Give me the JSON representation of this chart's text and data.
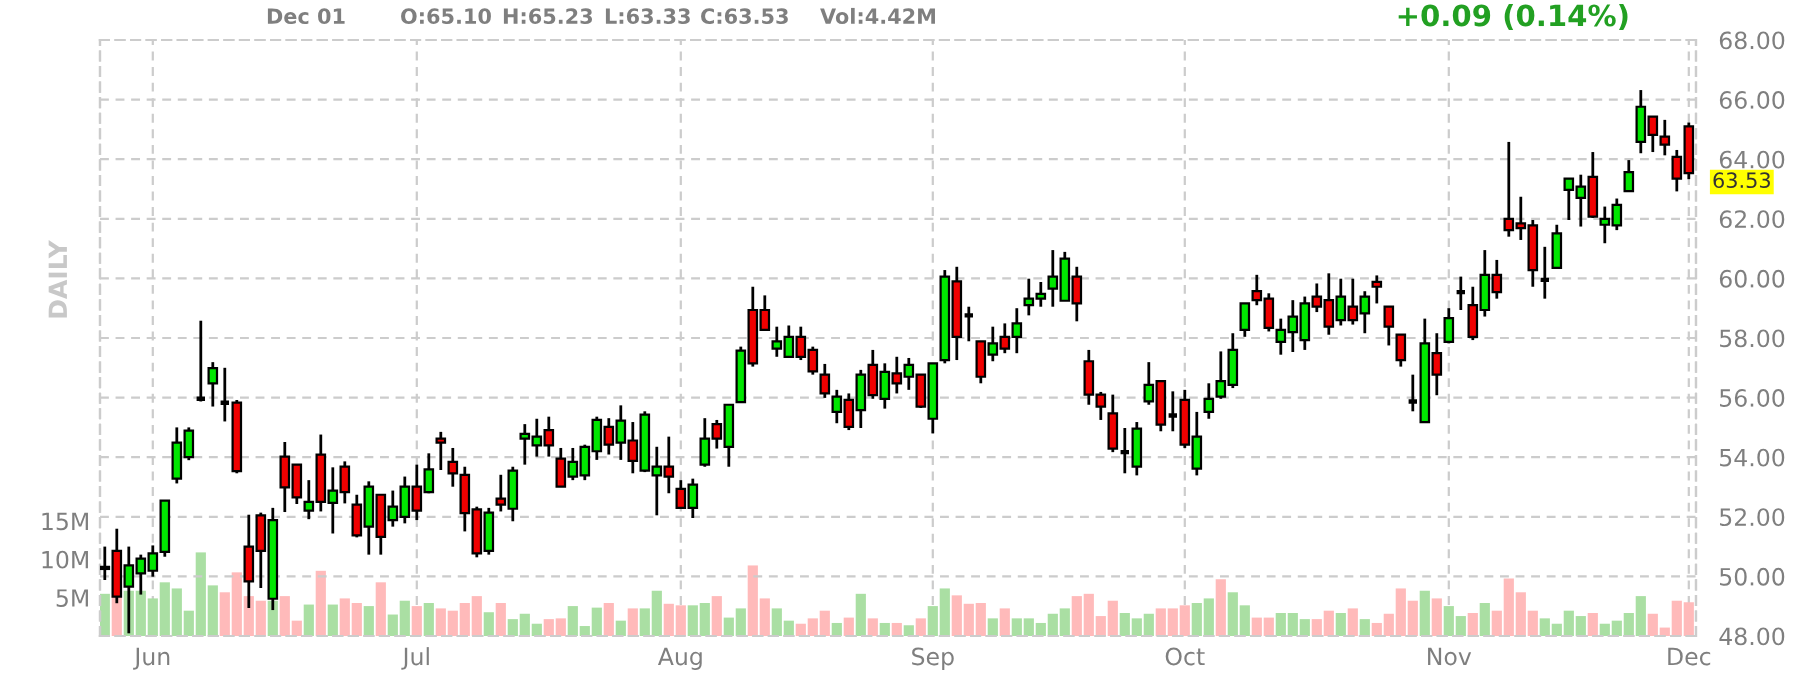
{
  "chart_data": {
    "type": "candlestick",
    "categories": [
      null,
      null,
      null,
      null,
      "Jun",
      null,
      null,
      null,
      null,
      null,
      null,
      null,
      null,
      null,
      null,
      null,
      null,
      null,
      null,
      null,
      null,
      null,
      null,
      null,
      null,
      null,
      "Jul",
      null,
      null,
      null,
      null,
      null,
      null,
      null,
      null,
      null,
      null,
      null,
      null,
      null,
      null,
      null,
      null,
      null,
      null,
      null,
      null,
      null,
      "Aug",
      null,
      null,
      null,
      null,
      null,
      null,
      null,
      null,
      null,
      null,
      null,
      null,
      null,
      null,
      null,
      null,
      null,
      null,
      null,
      null,
      "Sep",
      null,
      null,
      null,
      null,
      null,
      null,
      null,
      null,
      null,
      null,
      null,
      null,
      null,
      null,
      null,
      null,
      null,
      null,
      null,
      null,
      "Oct",
      null,
      null,
      null,
      null,
      null,
      null,
      null,
      null,
      null,
      null,
      null,
      null,
      null,
      null,
      null,
      null,
      null,
      null,
      null,
      null,
      null,
      "Nov",
      null,
      null,
      null,
      null,
      null,
      null,
      null,
      null,
      null,
      null,
      null,
      null,
      null,
      null,
      null,
      null,
      null,
      null,
      null,
      "Dec"
    ],
    "ohlc": [
      [
        50.32,
        51.0,
        49.88,
        50.25
      ],
      [
        50.86,
        51.6,
        49.1,
        49.32
      ],
      [
        49.66,
        51.0,
        48.09,
        50.37
      ],
      [
        50.1,
        50.73,
        49.39,
        50.6
      ],
      [
        50.19,
        51.04,
        49.99,
        50.77
      ],
      [
        50.82,
        52.54,
        50.66,
        52.54
      ],
      [
        53.28,
        55.0,
        53.12,
        54.49
      ],
      [
        54.0,
        55.0,
        53.9,
        54.89
      ],
      [
        55.96,
        58.58,
        55.87,
        55.96
      ],
      [
        56.48,
        57.19,
        55.7,
        56.99
      ],
      [
        55.83,
        57.0,
        55.2,
        55.83
      ],
      [
        55.83,
        55.92,
        53.46,
        53.53
      ],
      [
        51.0,
        52.07,
        48.94,
        49.83
      ],
      [
        52.05,
        52.14,
        49.61,
        50.86
      ],
      [
        49.25,
        52.3,
        48.87,
        51.89
      ],
      [
        54.02,
        54.51,
        52.16,
        52.99
      ],
      [
        53.75,
        53.75,
        52.43,
        52.65
      ],
      [
        52.21,
        53.23,
        51.92,
        52.5
      ],
      [
        54.09,
        54.76,
        52.18,
        52.5
      ],
      [
        52.47,
        53.66,
        51.44,
        52.88
      ],
      [
        53.68,
        53.86,
        52.45,
        52.83
      ],
      [
        52.41,
        52.74,
        51.31,
        51.38
      ],
      [
        51.67,
        53.19,
        50.73,
        53.01
      ],
      [
        52.74,
        52.74,
        50.73,
        51.33
      ],
      [
        51.89,
        52.88,
        51.67,
        52.34
      ],
      [
        52.0,
        53.35,
        51.78,
        53.01
      ],
      [
        53.01,
        53.75,
        51.89,
        52.21
      ],
      [
        52.83,
        54.13,
        52.79,
        53.59
      ],
      [
        54.62,
        54.85,
        53.57,
        54.49
      ],
      [
        53.84,
        54.31,
        53.01,
        53.46
      ],
      [
        53.41,
        53.68,
        51.51,
        52.12
      ],
      [
        52.25,
        52.34,
        50.64,
        50.77
      ],
      [
        50.86,
        52.3,
        50.73,
        52.14
      ],
      [
        52.61,
        53.41,
        52.18,
        52.41
      ],
      [
        52.27,
        53.68,
        51.85,
        53.55
      ],
      [
        54.62,
        55.11,
        53.75,
        54.78
      ],
      [
        54.4,
        55.29,
        54.02,
        54.69
      ],
      [
        54.91,
        55.36,
        54.02,
        54.4
      ],
      [
        53.95,
        54.31,
        53.01,
        53.01
      ],
      [
        53.35,
        54.31,
        53.23,
        53.84
      ],
      [
        53.39,
        54.42,
        53.23,
        54.35
      ],
      [
        54.2,
        55.36,
        53.91,
        55.25
      ],
      [
        55.02,
        55.31,
        54.09,
        54.42
      ],
      [
        54.49,
        55.74,
        53.91,
        55.23
      ],
      [
        54.56,
        55.18,
        53.46,
        53.88
      ],
      [
        53.55,
        55.54,
        53.5,
        55.43
      ],
      [
        53.39,
        54.35,
        52.05,
        53.68
      ],
      [
        53.68,
        54.69,
        52.79,
        53.35
      ],
      [
        52.94,
        53.23,
        52.3,
        52.3
      ],
      [
        52.3,
        53.28,
        51.96,
        53.08
      ],
      [
        53.75,
        55.31,
        53.68,
        54.62
      ],
      [
        55.11,
        55.25,
        54.29,
        54.62
      ],
      [
        54.35,
        55.76,
        53.68,
        55.76
      ],
      [
        55.85,
        57.71,
        55.85,
        57.58
      ],
      [
        58.94,
        59.72,
        57.04,
        57.15
      ],
      [
        58.94,
        59.43,
        58.27,
        58.27
      ],
      [
        57.64,
        58.38,
        57.37,
        57.89
      ],
      [
        57.37,
        58.42,
        57.33,
        58.04
      ],
      [
        58.04,
        58.38,
        57.26,
        57.37
      ],
      [
        57.6,
        57.71,
        56.77,
        56.88
      ],
      [
        56.77,
        57.13,
        55.99,
        56.14
      ],
      [
        55.52,
        56.26,
        55.14,
        56.03
      ],
      [
        55.92,
        56.14,
        54.91,
        55.02
      ],
      [
        55.58,
        56.93,
        54.98,
        56.77
      ],
      [
        57.1,
        57.6,
        55.96,
        56.08
      ],
      [
        55.96,
        57.15,
        55.63,
        56.86
      ],
      [
        56.81,
        57.37,
        56.14,
        56.48
      ],
      [
        56.7,
        57.33,
        56.26,
        57.1
      ],
      [
        56.77,
        56.77,
        55.65,
        55.7
      ],
      [
        55.29,
        57.15,
        54.8,
        57.15
      ],
      [
        57.26,
        60.28,
        57.15,
        60.06
      ],
      [
        59.9,
        60.39,
        57.26,
        58.04
      ],
      [
        58.76,
        59.05,
        57.89,
        58.76
      ],
      [
        57.89,
        57.89,
        56.48,
        56.7
      ],
      [
        57.44,
        58.38,
        57.22,
        57.82
      ],
      [
        58.04,
        58.49,
        57.49,
        57.64
      ],
      [
        58.04,
        59.0,
        57.49,
        58.49
      ],
      [
        59.1,
        59.99,
        58.76,
        59.32
      ],
      [
        59.32,
        59.88,
        59.05,
        59.48
      ],
      [
        59.66,
        60.95,
        59.05,
        60.06
      ],
      [
        59.25,
        60.89,
        59.25,
        60.66
      ],
      [
        60.06,
        60.39,
        58.56,
        59.16
      ],
      [
        57.22,
        57.6,
        55.76,
        56.1
      ],
      [
        56.1,
        56.19,
        55.25,
        55.7
      ],
      [
        55.47,
        56.1,
        54.17,
        54.29
      ],
      [
        54.17,
        54.98,
        53.46,
        54.17
      ],
      [
        53.68,
        55.18,
        53.39,
        54.96
      ],
      [
        55.87,
        57.19,
        55.76,
        56.43
      ],
      [
        56.55,
        56.55,
        54.87,
        55.09
      ],
      [
        55.4,
        56.21,
        54.87,
        55.4
      ],
      [
        55.92,
        56.26,
        54.31,
        54.42
      ],
      [
        53.62,
        55.52,
        53.39,
        54.69
      ],
      [
        55.52,
        56.48,
        55.29,
        55.96
      ],
      [
        56.03,
        57.55,
        55.96,
        56.55
      ],
      [
        56.43,
        58.16,
        56.32,
        57.6
      ],
      [
        58.27,
        59.16,
        58.04,
        59.16
      ],
      [
        59.57,
        60.12,
        59.1,
        59.27
      ],
      [
        59.32,
        59.5,
        58.22,
        58.34
      ],
      [
        57.87,
        58.65,
        57.44,
        58.27
      ],
      [
        58.2,
        59.27,
        57.53,
        58.72
      ],
      [
        57.93,
        59.39,
        57.6,
        59.16
      ],
      [
        59.39,
        59.83,
        58.87,
        59.05
      ],
      [
        59.27,
        60.17,
        58.11,
        58.38
      ],
      [
        58.6,
        59.99,
        58.42,
        59.39
      ],
      [
        59.05,
        59.99,
        58.45,
        58.6
      ],
      [
        58.83,
        59.57,
        58.16,
        59.39
      ],
      [
        59.88,
        60.1,
        59.16,
        59.72
      ],
      [
        59.05,
        59.05,
        57.75,
        58.38
      ],
      [
        58.11,
        58.11,
        57.04,
        57.26
      ],
      [
        55.87,
        56.77,
        55.54,
        55.87
      ],
      [
        55.18,
        58.65,
        55.18,
        57.82
      ],
      [
        57.49,
        58.16,
        56.08,
        56.77
      ],
      [
        57.87,
        59.0,
        57.82,
        58.67
      ],
      [
        59.54,
        60.06,
        58.94,
        59.54
      ],
      [
        59.1,
        59.72,
        57.93,
        58.04
      ],
      [
        58.94,
        60.95,
        58.72,
        60.12
      ],
      [
        60.12,
        60.62,
        59.32,
        59.54
      ],
      [
        62.0,
        64.58,
        61.4,
        61.62
      ],
      [
        61.85,
        62.74,
        61.29,
        61.69
      ],
      [
        61.78,
        61.96,
        59.72,
        60.28
      ],
      [
        59.95,
        61.06,
        59.32,
        59.95
      ],
      [
        60.35,
        61.8,
        60.35,
        61.51
      ],
      [
        62.97,
        63.35,
        61.96,
        63.35
      ],
      [
        62.7,
        63.48,
        61.74,
        63.08
      ],
      [
        63.41,
        64.24,
        62.03,
        62.07
      ],
      [
        61.8,
        62.41,
        61.18,
        62.0
      ],
      [
        61.78,
        62.68,
        61.62,
        62.47
      ],
      [
        62.93,
        63.97,
        62.93,
        63.57
      ],
      [
        64.58,
        66.32,
        64.2,
        65.76
      ],
      [
        65.43,
        65.43,
        64.24,
        64.82
      ],
      [
        64.76,
        65.32,
        64.13,
        64.49
      ],
      [
        64.08,
        64.31,
        62.92,
        63.35
      ],
      [
        65.1,
        65.23,
        63.33,
        63.53
      ]
    ],
    "colors": [
      "#000000",
      "#f00000",
      "#00e600",
      "#00e600",
      "#00e600",
      "#00e600",
      "#00e600",
      "#00e600",
      "#000000",
      "#00e600",
      "#000000",
      "#f00000",
      "#f00000",
      "#f00000",
      "#00e600",
      "#f00000",
      "#f00000",
      "#00e600",
      "#f00000",
      "#00e600",
      "#f00000",
      "#f00000",
      "#00e600",
      "#f00000",
      "#00e600",
      "#00e600",
      "#f00000",
      "#00e600",
      "#f00000",
      "#f00000",
      "#f00000",
      "#f00000",
      "#00e600",
      "#f00000",
      "#00e600",
      "#00e600",
      "#00e600",
      "#f00000",
      "#f00000",
      "#00e600",
      "#00e600",
      "#00e600",
      "#f00000",
      "#00e600",
      "#f00000",
      "#00e600",
      "#00e600",
      "#f00000",
      "#f00000",
      "#00e600",
      "#00e600",
      "#f00000",
      "#00e600",
      "#00e600",
      "#f00000",
      "#f00000",
      "#00e600",
      "#00e600",
      "#f00000",
      "#f00000",
      "#f00000",
      "#00e600",
      "#f00000",
      "#00e600",
      "#f00000",
      "#00e600",
      "#f00000",
      "#00e600",
      "#f00000",
      "#00e600",
      "#00e600",
      "#f00000",
      "#000000",
      "#f00000",
      "#00e600",
      "#f00000",
      "#00e600",
      "#00e600",
      "#00e600",
      "#00e600",
      "#00e600",
      "#f00000",
      "#f00000",
      "#f00000",
      "#f00000",
      "#000000",
      "#00e600",
      "#00e600",
      "#f00000",
      "#000000",
      "#f00000",
      "#00e600",
      "#00e600",
      "#00e600",
      "#00e600",
      "#00e600",
      "#f00000",
      "#f00000",
      "#00e600",
      "#00e600",
      "#00e600",
      "#f00000",
      "#f00000",
      "#00e600",
      "#f00000",
      "#00e600",
      "#f00000",
      "#f00000",
      "#f00000",
      "#000000",
      "#00e600",
      "#f00000",
      "#00e600",
      "#000000",
      "#f00000",
      "#00e600",
      "#f00000",
      "#f00000",
      "#f00000",
      "#f00000",
      "#000000",
      "#00e600",
      "#00e600",
      "#00e600",
      "#f00000",
      "#00e600",
      "#00e600",
      "#00e600",
      "#00e600",
      "#f00000",
      "#f00000",
      "#f00000",
      "#f00000"
    ],
    "series": [
      {
        "type": "bar",
        "axis": "y2",
        "values": [
          5.5,
          5.2,
          5.9,
          5.9,
          4.9,
          7.0,
          6.2,
          3.3,
          10.9,
          6.6,
          5.7,
          8.3,
          5.2,
          4.6,
          4.6,
          5.2,
          2.0,
          4.1,
          8.5,
          4.1,
          4.9,
          4.3,
          3.9,
          7.0,
          2.8,
          4.6,
          3.9,
          4.3,
          3.6,
          3.3,
          4.3,
          5.2,
          3.1,
          4.3,
          2.2,
          2.9,
          1.6,
          2.2,
          2.3,
          3.9,
          1.3,
          3.7,
          4.3,
          2.0,
          3.6,
          3.6,
          5.9,
          4.2,
          4.0,
          4.0,
          4.3,
          5.2,
          2.4,
          3.6,
          9.2,
          4.9,
          3.6,
          2.0,
          1.6,
          2.3,
          3.3,
          1.7,
          2.4,
          5.5,
          2.3,
          1.7,
          1.7,
          1.4,
          2.3,
          3.9,
          6.2,
          5.3,
          4.2,
          4.3,
          2.3,
          3.6,
          2.3,
          2.3,
          1.7,
          2.9,
          3.6,
          5.2,
          5.5,
          2.6,
          4.6,
          3.0,
          2.3,
          2.9,
          3.6,
          3.6,
          4.0,
          4.3,
          4.9,
          7.4,
          5.7,
          4.0,
          2.4,
          2.4,
          3.0,
          3.0,
          2.2,
          2.2,
          3.3,
          3.0,
          3.6,
          2.2,
          1.7,
          2.9,
          6.2,
          4.6,
          5.9,
          4.9,
          3.9,
          2.6,
          3.0,
          4.3,
          3.3,
          7.5,
          5.7,
          3.3,
          2.3,
          1.6,
          3.3,
          2.6,
          3.0,
          1.6,
          2.0,
          3.0,
          5.2,
          2.9,
          1.1,
          4.6,
          4.4
        ],
        "colors": [
          "#aadfa3",
          "#ffbaba",
          "#aadfa3",
          "#aadfa3",
          "#aadfa3",
          "#aadfa3",
          "#aadfa3",
          "#aadfa3",
          "#aadfa3",
          "#aadfa3",
          "#ffbaba",
          "#ffbaba",
          "#ffbaba",
          "#ffbaba",
          "#aadfa3",
          "#ffbaba",
          "#ffbaba",
          "#aadfa3",
          "#ffbaba",
          "#aadfa3",
          "#ffbaba",
          "#ffbaba",
          "#aadfa3",
          "#ffbaba",
          "#aadfa3",
          "#aadfa3",
          "#ffbaba",
          "#aadfa3",
          "#ffbaba",
          "#ffbaba",
          "#ffbaba",
          "#ffbaba",
          "#aadfa3",
          "#ffbaba",
          "#aadfa3",
          "#aadfa3",
          "#aadfa3",
          "#ffbaba",
          "#ffbaba",
          "#aadfa3",
          "#aadfa3",
          "#aadfa3",
          "#ffbaba",
          "#aadfa3",
          "#ffbaba",
          "#aadfa3",
          "#aadfa3",
          "#ffbaba",
          "#ffbaba",
          "#aadfa3",
          "#aadfa3",
          "#ffbaba",
          "#aadfa3",
          "#aadfa3",
          "#ffbaba",
          "#ffbaba",
          "#aadfa3",
          "#aadfa3",
          "#ffbaba",
          "#ffbaba",
          "#ffbaba",
          "#aadfa3",
          "#ffbaba",
          "#aadfa3",
          "#ffbaba",
          "#aadfa3",
          "#ffbaba",
          "#aadfa3",
          "#ffbaba",
          "#aadfa3",
          "#aadfa3",
          "#ffbaba",
          "#ffbaba",
          "#ffbaba",
          "#aadfa3",
          "#ffbaba",
          "#aadfa3",
          "#aadfa3",
          "#aadfa3",
          "#aadfa3",
          "#aadfa3",
          "#ffbaba",
          "#ffbaba",
          "#ffbaba",
          "#ffbaba",
          "#aadfa3",
          "#aadfa3",
          "#aadfa3",
          "#ffbaba",
          "#ffbaba",
          "#ffbaba",
          "#aadfa3",
          "#aadfa3",
          "#ffbaba",
          "#aadfa3",
          "#aadfa3",
          "#ffbaba",
          "#ffbaba",
          "#aadfa3",
          "#aadfa3",
          "#aadfa3",
          "#ffbaba",
          "#ffbaba",
          "#aadfa3",
          "#ffbaba",
          "#aadfa3",
          "#ffbaba",
          "#ffbaba",
          "#ffbaba",
          "#ffbaba",
          "#aadfa3",
          "#ffbaba",
          "#aadfa3",
          "#aadfa3",
          "#ffbaba",
          "#aadfa3",
          "#ffbaba",
          "#ffbaba",
          "#ffbaba",
          "#ffbaba",
          "#aadfa3",
          "#aadfa3",
          "#aadfa3",
          "#aadfa3",
          "#ffbaba",
          "#aadfa3",
          "#aadfa3",
          "#aadfa3",
          "#aadfa3",
          "#ffbaba",
          "#ffbaba",
          "#ffbaba",
          "#ffbaba"
        ]
      }
    ],
    "ylim": [
      48,
      68
    ],
    "yticks": [
      {
        "value": 48,
        "label": "48.00"
      },
      {
        "value": 50,
        "label": "50.00"
      },
      {
        "value": 52,
        "label": "52.00"
      },
      {
        "value": 54,
        "label": "54.00"
      },
      {
        "value": 56,
        "label": "56.00"
      },
      {
        "value": 58,
        "label": "58.00"
      },
      {
        "value": 60,
        "label": "60.00"
      },
      {
        "value": 62,
        "label": "62.00"
      },
      {
        "value": 64,
        "label": "64.00"
      },
      {
        "value": 66,
        "label": "66.00"
      },
      {
        "value": 68,
        "label": "68.00"
      }
    ],
    "y2lim": [
      0,
      77.7
    ],
    "y2ticks": [
      {
        "value": 5,
        "label": "5M"
      },
      {
        "value": 10,
        "label": "10M"
      },
      {
        "value": 15,
        "label": "15M"
      }
    ],
    "grid": true,
    "annotations": [
      "Dec 01",
      "O:65.10",
      "H:65.23",
      "L:63.33",
      "C:63.53",
      "Vol:4.42M",
      "+0.09 (0.14%)",
      "DAILY",
      "63.53"
    ]
  }
}
